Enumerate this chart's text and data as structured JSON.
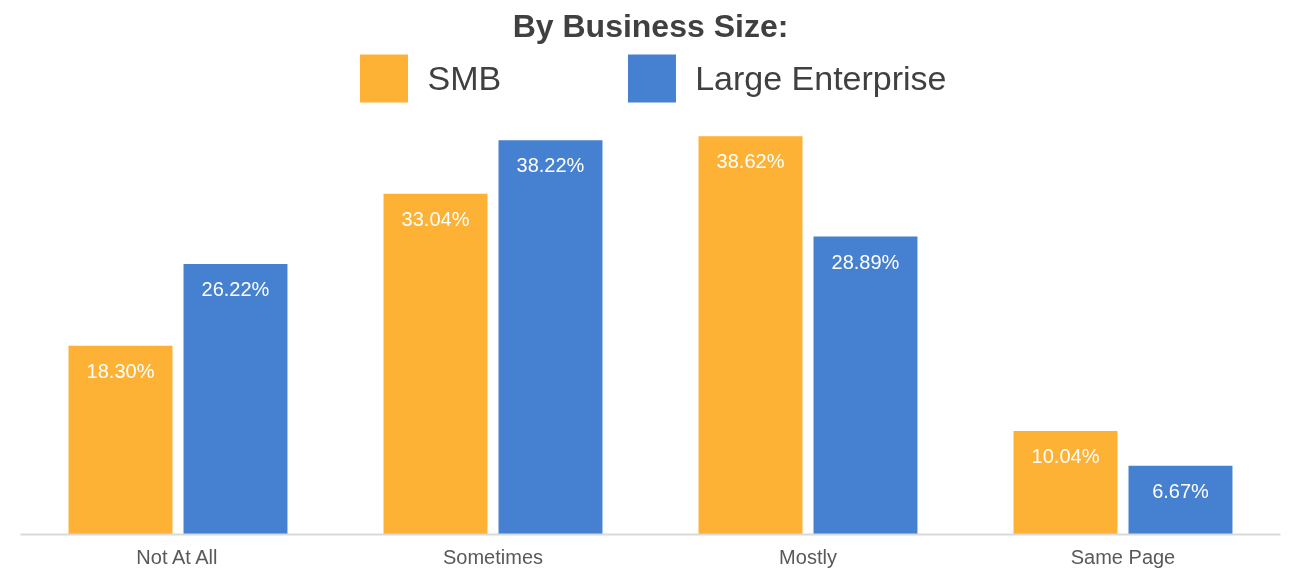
{
  "chart_data": {
    "type": "bar",
    "title": "By Business Size:",
    "categories": [
      "Not At All",
      "Sometimes",
      "Mostly",
      "Same Page"
    ],
    "series": [
      {
        "name": "SMB",
        "color": "#fdb135",
        "values": [
          18.3,
          33.04,
          38.62,
          10.04
        ],
        "value_labels": [
          "18.30%",
          "33.04%",
          "38.62%",
          "10.04%"
        ]
      },
      {
        "name": "Large Enterprise",
        "color": "#4680d0",
        "values": [
          26.22,
          38.22,
          28.89,
          6.67
        ],
        "value_labels": [
          "26.22%",
          "38.22%",
          "28.89%",
          "6.67%"
        ]
      }
    ],
    "legend": "top"
  }
}
